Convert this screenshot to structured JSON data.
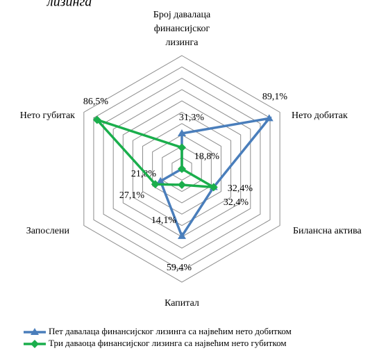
{
  "chart_data": {
    "type": "radar",
    "title": "лизинга",
    "categories": [
      "Број давалаца\nфинансијског\nлизинга",
      "Нето добитак",
      "Билансна актива",
      "Капитал",
      "Запослени",
      "Нето губитак"
    ],
    "rlim": [
      0,
      100
    ],
    "rticks": [
      10,
      20,
      30,
      40,
      50,
      60,
      70,
      80,
      90,
      100
    ],
    "grid": true,
    "legend": "bottom",
    "series": [
      {
        "name": "Пет давалаца финансијског лизинга са највећим нето добитком",
        "color": "#4a7ebb",
        "marker": "triangle",
        "values": [
          31.3,
          89.1,
          32.4,
          59.4,
          21.8,
          0
        ],
        "value_labels": [
          "31,3%",
          "89,1%",
          "32,4%",
          "59,4%",
          "21,8%",
          null
        ]
      },
      {
        "name": "Три даваоца финансијског лизинга са највећим нето губитком",
        "color": "#1aae4c",
        "marker": "diamond",
        "values": [
          18.8,
          0,
          32.4,
          14.1,
          27.1,
          86.5
        ],
        "value_labels": [
          "18,8%",
          null,
          "32,4%",
          "14,1%",
          "27,1%",
          "86,5%"
        ]
      }
    ]
  }
}
